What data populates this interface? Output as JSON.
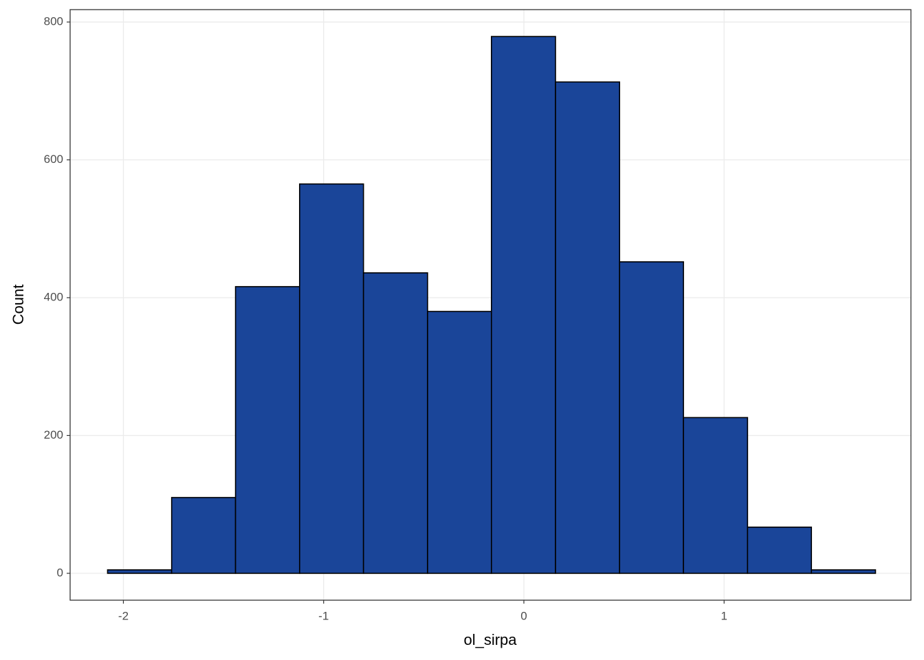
{
  "chart_data": {
    "type": "histogram",
    "xlabel": "ol_sirpa",
    "ylabel": "Count",
    "bins": [
      -2.079,
      -1.759,
      -1.44,
      -1.12,
      -0.801,
      -0.481,
      -0.162,
      0.158,
      0.478,
      0.797,
      1.117,
      1.436,
      1.756
    ],
    "values": [
      5,
      110,
      416,
      565,
      436,
      380,
      779,
      713,
      452,
      226,
      67,
      5
    ],
    "color": "#1a4599",
    "edgecolor": "#000000",
    "xlim": [
      -2.266,
      1.933
    ],
    "ylim": [
      -39,
      818
    ],
    "xticks": [
      -2,
      -1,
      0,
      1
    ],
    "yticks": [
      0,
      200,
      400,
      600,
      800
    ],
    "grid": true
  }
}
